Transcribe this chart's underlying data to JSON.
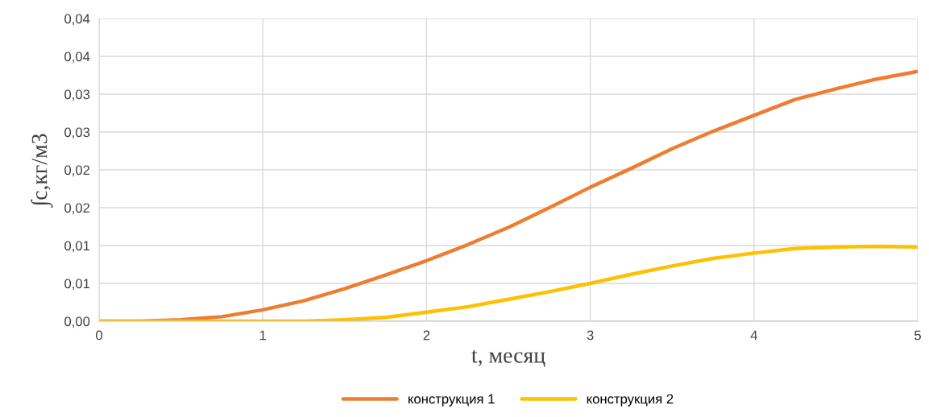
{
  "chart_data": {
    "type": "line",
    "xlabel": "t, месяц",
    "ylabel": "∫c,кг/м3",
    "x": [
      0,
      0.25,
      0.5,
      0.75,
      1.0,
      1.25,
      1.5,
      1.75,
      2.0,
      2.25,
      2.5,
      2.75,
      3.0,
      3.25,
      3.5,
      3.75,
      4.0,
      4.25,
      4.5,
      4.75,
      5.0
    ],
    "series": [
      {
        "name": "конструкция 1",
        "color": "#ed7d31",
        "values": [
          0,
          0,
          0.0002,
          0.0006,
          0.0015,
          0.0027,
          0.0043,
          0.0061,
          0.008,
          0.0101,
          0.0124,
          0.015,
          0.0177,
          0.0202,
          0.0228,
          0.0251,
          0.0272,
          0.0293,
          0.0307,
          0.032,
          0.033
        ]
      },
      {
        "name": "конструкция 2",
        "color": "#ffc000",
        "values": [
          0,
          0,
          0,
          0,
          0,
          0,
          0.0002,
          0.0005,
          0.0012,
          0.0019,
          0.0029,
          0.0039,
          0.005,
          0.0062,
          0.0073,
          0.0083,
          0.009,
          0.0096,
          0.0098,
          0.0099,
          0.0098
        ]
      }
    ],
    "xlim": [
      0,
      5
    ],
    "xticks": [
      0,
      1,
      2,
      3,
      4,
      5
    ],
    "ylim": [
      0,
      0.04
    ],
    "yticks": [
      {
        "value": 0,
        "label": "0,00"
      },
      {
        "value": 0.005,
        "label": "0,01"
      },
      {
        "value": 0.01,
        "label": "0,01"
      },
      {
        "value": 0.015,
        "label": "0,02"
      },
      {
        "value": 0.02,
        "label": "0,02"
      },
      {
        "value": 0.025,
        "label": "0,03"
      },
      {
        "value": 0.03,
        "label": "0,03"
      },
      {
        "value": 0.035,
        "label": "0,04"
      },
      {
        "value": 0.04,
        "label": "0,04"
      }
    ],
    "grid": true,
    "legend": "bottom",
    "marker": "none",
    "line_style": "solid"
  }
}
